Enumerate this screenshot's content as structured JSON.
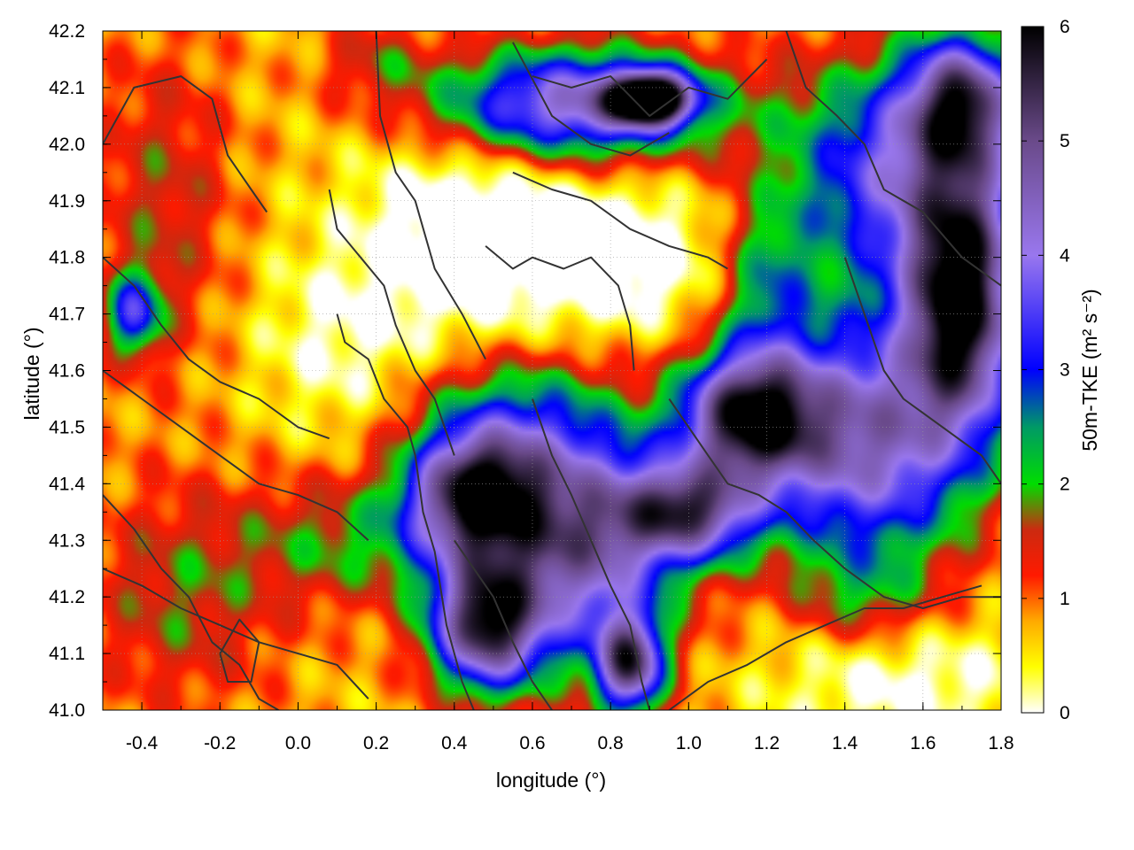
{
  "chart_data": {
    "type": "heatmap",
    "xlabel": "longitude (°)",
    "ylabel": "latitude (°)",
    "colorbar_label": "50m-TKE (m² s⁻²)",
    "xlim": [
      -0.5,
      1.8
    ],
    "ylim": [
      41.0,
      42.2
    ],
    "zlim": [
      0,
      6
    ],
    "xticks": [
      -0.4,
      -0.2,
      0.0,
      0.2,
      0.4,
      0.6,
      0.8,
      1.0,
      1.2,
      1.4,
      1.6,
      1.8
    ],
    "xtick_labels": [
      "-0.4",
      "-0.2",
      "0.0",
      "0.2",
      "0.4",
      "0.6",
      "0.8",
      "1.0",
      "1.2",
      "1.4",
      "1.6",
      "1.8"
    ],
    "yticks": [
      41.0,
      41.1,
      41.2,
      41.3,
      41.4,
      41.5,
      41.6,
      41.7,
      41.8,
      41.9,
      42.0,
      42.1,
      42.2
    ],
    "ytick_labels": [
      "41.0",
      "41.1",
      "41.2",
      "41.3",
      "41.4",
      "41.5",
      "41.6",
      "41.7",
      "41.8",
      "41.9",
      "42.0",
      "42.1",
      "42.2"
    ],
    "colorbar_ticks": [
      0,
      1,
      2,
      3,
      4,
      5,
      6
    ],
    "colorbar_tick_labels": [
      "0",
      "1",
      "2",
      "3",
      "4",
      "5",
      "6"
    ],
    "colormap": [
      {
        "v": 0.0,
        "color": "#ffffff"
      },
      {
        "v": 0.4,
        "color": "#ffff00"
      },
      {
        "v": 0.8,
        "color": "#ffaa00"
      },
      {
        "v": 1.2,
        "color": "#ff1a00"
      },
      {
        "v": 1.6,
        "color": "#cc2a10"
      },
      {
        "v": 2.0,
        "color": "#00dd00"
      },
      {
        "v": 2.5,
        "color": "#009966"
      },
      {
        "v": 3.0,
        "color": "#0000ff"
      },
      {
        "v": 4.0,
        "color": "#9977ee"
      },
      {
        "v": 5.0,
        "color": "#6a4a8a"
      },
      {
        "v": 6.0,
        "color": "#000000"
      }
    ],
    "field_blobs": [
      {
        "lon": -0.35,
        "lat": 41.9,
        "sx": 0.13,
        "sy": 0.2,
        "amp": 0.9
      },
      {
        "lon": -0.3,
        "lat": 41.2,
        "sx": 0.18,
        "sy": 0.14,
        "amp": 1.0
      },
      {
        "lon": -0.42,
        "lat": 41.7,
        "sx": 0.05,
        "sy": 0.05,
        "amp": 2.3
      },
      {
        "lon": 0.15,
        "lat": 41.3,
        "sx": 0.2,
        "sy": 0.08,
        "amp": 1.2
      },
      {
        "lon": 0.45,
        "lat": 41.38,
        "sx": 0.12,
        "sy": 0.08,
        "amp": 4.4
      },
      {
        "lon": 0.48,
        "lat": 41.15,
        "sx": 0.1,
        "sy": 0.08,
        "amp": 4.6
      },
      {
        "lon": 0.72,
        "lat": 41.3,
        "sx": 0.17,
        "sy": 0.14,
        "amp": 4.0
      },
      {
        "lon": 0.85,
        "lat": 41.08,
        "sx": 0.06,
        "sy": 0.06,
        "amp": 4.2
      },
      {
        "lon": 0.55,
        "lat": 41.52,
        "sx": 0.18,
        "sy": 0.09,
        "amp": 1.5
      },
      {
        "lon": 1.0,
        "lat": 41.35,
        "sx": 0.12,
        "sy": 0.06,
        "amp": 3.7
      },
      {
        "lon": 1.15,
        "lat": 41.52,
        "sx": 0.12,
        "sy": 0.08,
        "amp": 4.6
      },
      {
        "lon": 1.45,
        "lat": 41.48,
        "sx": 0.2,
        "sy": 0.15,
        "amp": 3.8
      },
      {
        "lon": 1.7,
        "lat": 41.72,
        "sx": 0.1,
        "sy": 0.15,
        "amp": 5.0
      },
      {
        "lon": 1.55,
        "lat": 41.95,
        "sx": 0.22,
        "sy": 0.14,
        "amp": 3.0
      },
      {
        "lon": 1.7,
        "lat": 42.08,
        "sx": 0.1,
        "sy": 0.08,
        "amp": 3.6
      },
      {
        "lon": 0.7,
        "lat": 42.07,
        "sx": 0.25,
        "sy": 0.07,
        "amp": 3.8
      },
      {
        "lon": 0.9,
        "lat": 42.08,
        "sx": 0.07,
        "sy": 0.03,
        "amp": 5.6
      },
      {
        "lon": 1.2,
        "lat": 41.75,
        "sx": 0.08,
        "sy": 0.1,
        "amp": 1.4
      },
      {
        "lon": 1.45,
        "lat": 41.2,
        "sx": 0.12,
        "sy": 0.06,
        "amp": 0.9
      },
      {
        "lon": 0.2,
        "lat": 42.15,
        "sx": 0.1,
        "sy": 0.05,
        "amp": 0.8
      },
      {
        "lon": 0.45,
        "lat": 41.85,
        "sx": 0.2,
        "sy": 0.15,
        "amp": -1.2
      },
      {
        "lon": 0.1,
        "lat": 41.65,
        "sx": 0.15,
        "sy": 0.12,
        "amp": -0.6
      },
      {
        "lon": 0.85,
        "lat": 41.8,
        "sx": 0.18,
        "sy": 0.1,
        "amp": -1.0
      },
      {
        "lon": 1.55,
        "lat": 41.05,
        "sx": 0.25,
        "sy": 0.08,
        "amp": -0.8
      }
    ],
    "contour_lines": [
      [
        [
          -0.5,
          42.0
        ],
        [
          -0.42,
          42.1
        ],
        [
          -0.3,
          42.12
        ],
        [
          -0.22,
          42.08
        ],
        [
          -0.18,
          41.98
        ],
        [
          -0.12,
          41.92
        ],
        [
          -0.08,
          41.88
        ]
      ],
      [
        [
          0.2,
          42.2
        ],
        [
          0.21,
          42.05
        ],
        [
          0.25,
          41.95
        ],
        [
          0.3,
          41.9
        ],
        [
          0.35,
          41.78
        ],
        [
          0.42,
          41.7
        ],
        [
          0.48,
          41.62
        ]
      ],
      [
        [
          0.08,
          41.92
        ],
        [
          0.1,
          41.85
        ],
        [
          0.16,
          41.8
        ],
        [
          0.22,
          41.75
        ],
        [
          0.25,
          41.68
        ],
        [
          0.3,
          41.6
        ],
        [
          0.35,
          41.55
        ],
        [
          0.4,
          41.45
        ]
      ],
      [
        [
          0.1,
          41.7
        ],
        [
          0.12,
          41.65
        ],
        [
          0.18,
          41.62
        ],
        [
          0.22,
          41.55
        ],
        [
          0.28,
          41.5
        ],
        [
          0.3,
          41.45
        ],
        [
          0.32,
          41.35
        ],
        [
          0.35,
          41.28
        ],
        [
          0.38,
          41.15
        ],
        [
          0.42,
          41.05
        ],
        [
          0.45,
          41.0
        ]
      ],
      [
        [
          0.48,
          41.82
        ],
        [
          0.55,
          41.78
        ],
        [
          0.6,
          41.8
        ],
        [
          0.68,
          41.78
        ],
        [
          0.75,
          41.8
        ],
        [
          0.82,
          41.75
        ],
        [
          0.85,
          41.68
        ],
        [
          0.86,
          41.6
        ]
      ],
      [
        [
          0.55,
          41.95
        ],
        [
          0.65,
          41.92
        ],
        [
          0.75,
          41.9
        ],
        [
          0.85,
          41.85
        ],
        [
          0.95,
          41.82
        ],
        [
          1.05,
          41.8
        ],
        [
          1.1,
          41.78
        ]
      ],
      [
        [
          0.6,
          42.12
        ],
        [
          0.7,
          42.1
        ],
        [
          0.8,
          42.12
        ],
        [
          0.9,
          42.05
        ],
        [
          1.0,
          42.1
        ],
        [
          1.1,
          42.08
        ],
        [
          1.2,
          42.15
        ]
      ],
      [
        [
          0.55,
          42.18
        ],
        [
          0.65,
          42.05
        ],
        [
          0.75,
          42.0
        ],
        [
          0.85,
          41.98
        ],
        [
          0.95,
          42.02
        ]
      ],
      [
        [
          1.25,
          42.2
        ],
        [
          1.3,
          42.1
        ],
        [
          1.38,
          42.05
        ],
        [
          1.45,
          42.0
        ],
        [
          1.5,
          41.92
        ],
        [
          1.6,
          41.88
        ],
        [
          1.7,
          41.8
        ],
        [
          1.8,
          41.75
        ]
      ],
      [
        [
          1.4,
          41.8
        ],
        [
          1.45,
          41.7
        ],
        [
          1.5,
          41.6
        ],
        [
          1.55,
          41.55
        ],
        [
          1.65,
          41.5
        ],
        [
          1.75,
          41.45
        ],
        [
          1.8,
          41.4
        ]
      ],
      [
        [
          0.95,
          41.55
        ],
        [
          1.0,
          41.5
        ],
        [
          1.05,
          41.45
        ],
        [
          1.1,
          41.4
        ],
        [
          1.18,
          41.38
        ],
        [
          1.25,
          41.35
        ],
        [
          1.32,
          41.3
        ],
        [
          1.4,
          41.25
        ],
        [
          1.5,
          41.2
        ],
        [
          1.6,
          41.18
        ],
        [
          1.7,
          41.2
        ],
        [
          1.8,
          41.2
        ]
      ],
      [
        [
          0.95,
          41.0
        ],
        [
          1.05,
          41.05
        ],
        [
          1.15,
          41.08
        ],
        [
          1.25,
          41.12
        ],
        [
          1.35,
          41.15
        ],
        [
          1.45,
          41.18
        ],
        [
          1.55,
          41.18
        ],
        [
          1.65,
          41.2
        ],
        [
          1.75,
          41.22
        ]
      ],
      [
        [
          0.6,
          41.55
        ],
        [
          0.65,
          41.45
        ],
        [
          0.7,
          41.38
        ],
        [
          0.75,
          41.3
        ],
        [
          0.8,
          41.22
        ],
        [
          0.85,
          41.15
        ],
        [
          0.88,
          41.05
        ],
        [
          0.9,
          41.0
        ]
      ],
      [
        [
          0.4,
          41.3
        ],
        [
          0.45,
          41.25
        ],
        [
          0.5,
          41.2
        ],
        [
          0.55,
          41.12
        ],
        [
          0.6,
          41.05
        ],
        [
          0.65,
          41.0
        ]
      ],
      [
        [
          -0.5,
          41.38
        ],
        [
          -0.42,
          41.32
        ],
        [
          -0.35,
          41.25
        ],
        [
          -0.28,
          41.2
        ],
        [
          -0.22,
          41.12
        ],
        [
          -0.15,
          41.08
        ],
        [
          -0.1,
          41.02
        ],
        [
          -0.05,
          41.0
        ]
      ],
      [
        [
          -0.5,
          41.6
        ],
        [
          -0.4,
          41.55
        ],
        [
          -0.3,
          41.5
        ],
        [
          -0.2,
          41.45
        ],
        [
          -0.1,
          41.4
        ],
        [
          0.0,
          41.38
        ],
        [
          0.1,
          41.35
        ],
        [
          0.18,
          41.3
        ]
      ],
      [
        [
          -0.5,
          41.8
        ],
        [
          -0.42,
          41.75
        ],
        [
          -0.35,
          41.68
        ],
        [
          -0.28,
          41.62
        ],
        [
          -0.2,
          41.58
        ],
        [
          -0.1,
          41.55
        ],
        [
          0.0,
          41.5
        ],
        [
          0.08,
          41.48
        ]
      ],
      [
        [
          -0.5,
          41.25
        ],
        [
          -0.4,
          41.22
        ],
        [
          -0.3,
          41.18
        ],
        [
          -0.2,
          41.15
        ],
        [
          -0.1,
          41.12
        ],
        [
          0.0,
          41.1
        ],
        [
          0.1,
          41.08
        ],
        [
          0.18,
          41.02
        ]
      ],
      [
        [
          -0.2,
          41.1
        ],
        [
          -0.18,
          41.05
        ],
        [
          -0.12,
          41.05
        ],
        [
          -0.1,
          41.12
        ],
        [
          -0.15,
          41.16
        ],
        [
          -0.2,
          41.1
        ]
      ]
    ]
  }
}
